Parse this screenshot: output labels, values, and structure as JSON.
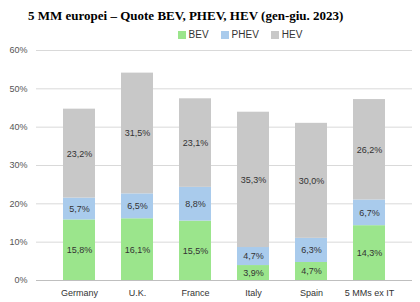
{
  "chart_data": {
    "type": "bar",
    "title": "5 MM europei – Quote BEV, PHEV, HEV (gen-giu. 2023)",
    "categories": [
      "Germany",
      "U.K.",
      "France",
      "Italy",
      "Spain",
      "5 MMs ex IT"
    ],
    "series": [
      {
        "name": "BEV",
        "color": "#9be58c",
        "values": [
          15.8,
          16.1,
          15.5,
          3.9,
          4.7,
          14.3
        ],
        "value_labels": [
          "15,8%",
          "16,1%",
          "15,5%",
          "3,9%",
          "4,7%",
          "14,3%"
        ]
      },
      {
        "name": "PHEV",
        "color": "#a9cbec",
        "values": [
          5.7,
          6.5,
          8.8,
          4.7,
          6.3,
          6.7
        ],
        "value_labels": [
          "5,7%",
          "6,5%",
          "8,8%",
          "4,7%",
          "6,3%",
          "6,7%"
        ]
      },
      {
        "name": "HEV",
        "color": "#c8c8c8",
        "values": [
          23.2,
          31.5,
          23.1,
          35.3,
          30.0,
          26.2
        ],
        "value_labels": [
          "23,2%",
          "31,5%",
          "23,1%",
          "35,3%",
          "30,0%",
          "26,2%"
        ]
      }
    ],
    "ylim": [
      0,
      60
    ],
    "yticks": [
      {
        "value": 0,
        "label": "0%"
      },
      {
        "value": 10,
        "label": "10%"
      },
      {
        "value": 20,
        "label": "20%"
      },
      {
        "value": 30,
        "label": "30%"
      },
      {
        "value": 40,
        "label": "40%"
      },
      {
        "value": 50,
        "label": "50%"
      },
      {
        "value": 60,
        "label": "60%"
      }
    ],
    "grid": true,
    "stacked": true,
    "data_labels": true,
    "legend": "top"
  }
}
